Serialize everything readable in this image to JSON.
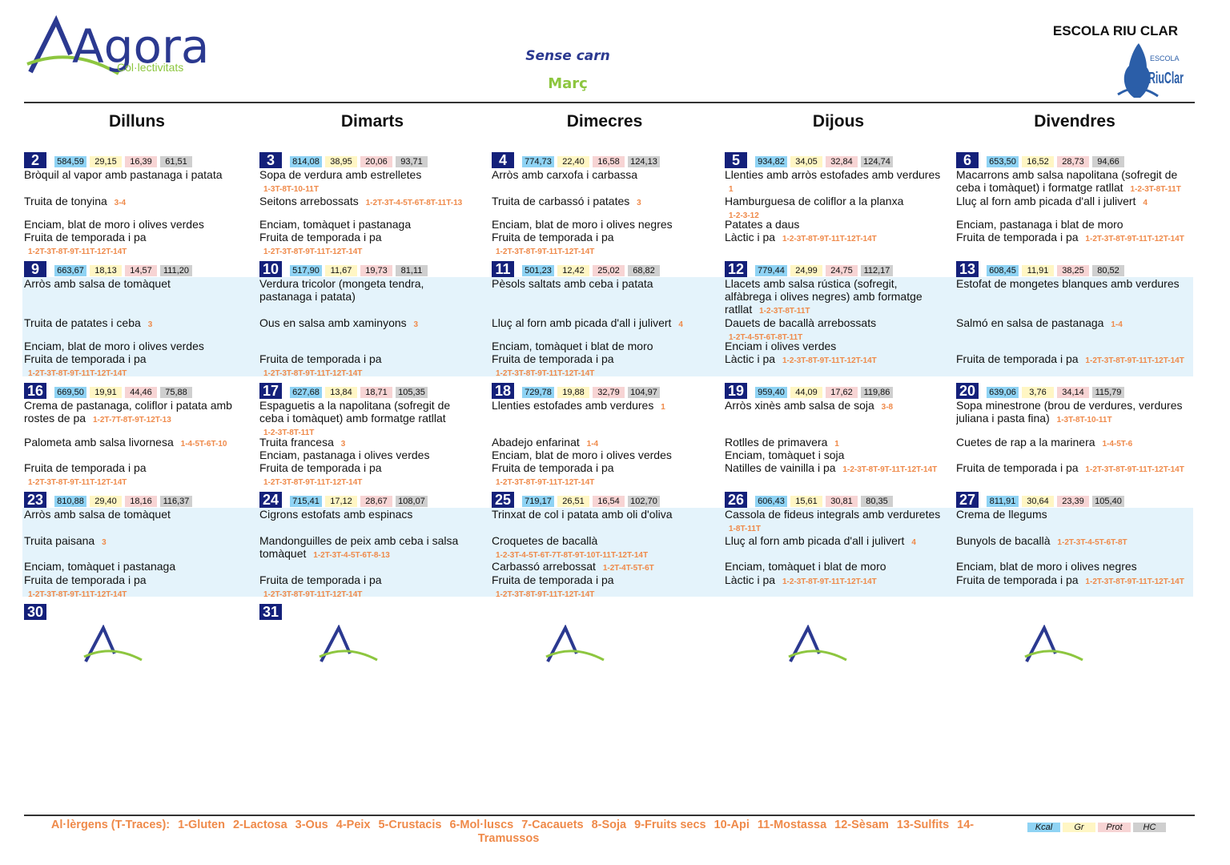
{
  "header": {
    "brand": "Agora",
    "brand_sub": "Col·lectivitats",
    "menu_type": "Sense carn",
    "month": "Març",
    "school": "ESCOLA RIU CLAR",
    "school_logo_top": "ESCOLA",
    "school_logo_name": "RiuClar"
  },
  "weekdays": [
    "Dilluns",
    "Dimarts",
    "Dimecres",
    "Dijous",
    "Divendres"
  ],
  "weeks": [
    [
      {
        "day": "2",
        "nutrition": [
          "584,59",
          "29,15",
          "16,39",
          "61,51"
        ],
        "first": {
          "text": "Bròquil al vapor amb pastanaga i patata"
        },
        "second": {
          "text": "Truita de tonyina",
          "allergens": "3-4"
        },
        "side": {
          "text": "Enciam, blat de moro i olives verdes"
        },
        "dessert": {
          "text": "Fruita de temporada i pa",
          "allergens": "1-2T-3T-8T-9T-11T-12T-14T"
        }
      },
      {
        "day": "3",
        "nutrition": [
          "814,08",
          "38,95",
          "20,06",
          "93,71"
        ],
        "first": {
          "text": "Sopa de verdura amb estrelletes",
          "allergens": "1-3T-8T-10-11T"
        },
        "second": {
          "text": "Seitons arrebossats",
          "allergens": "1-2T-3T-4-5T-6T-8T-11T-13"
        },
        "side": {
          "text": "Enciam, tomàquet i pastanaga"
        },
        "dessert": {
          "text": "Fruita de temporada i pa",
          "allergens": "1-2T-3T-8T-9T-11T-12T-14T"
        }
      },
      {
        "day": "4",
        "nutrition": [
          "774,73",
          "22,40",
          "16,58",
          "124,13"
        ],
        "first": {
          "text": "Arròs amb carxofa i carbassa"
        },
        "second": {
          "text": "Truita de carbassó i patates",
          "allergens": "3"
        },
        "side": {
          "text": "Enciam, blat de moro i olives negres"
        },
        "dessert": {
          "text": "Fruita de temporada i pa",
          "allergens": "1-2T-3T-8T-9T-11T-12T-14T"
        }
      },
      {
        "day": "5",
        "nutrition": [
          "934,82",
          "34,05",
          "32,84",
          "124,74"
        ],
        "first": {
          "text": "Llenties amb arròs estofades amb verdures",
          "allergens": "1"
        },
        "second": {
          "text": "Hamburguesa de coliflor a la planxa",
          "allergens": "1-2-3-12"
        },
        "side": {
          "text": "Patates a daus"
        },
        "dessert": {
          "text": "Làctic i pa",
          "allergens": "1-2-3T-8T-9T-11T-12T-14T"
        }
      },
      {
        "day": "6",
        "nutrition": [
          "653,50",
          "16,52",
          "28,73",
          "94,66"
        ],
        "first": {
          "text": "Macarrons amb salsa napolitana (sofregit de ceba i tomàquet) i formatge ratllat",
          "allergens": "1-2-3T-8T-11T"
        },
        "second": {
          "text": "Lluç al forn amb picada d'all i julivert",
          "allergens": "4"
        },
        "side": {
          "text": "Enciam, pastanaga i blat de moro"
        },
        "dessert": {
          "text": "Fruita de temporada i pa",
          "allergens": "1-2T-3T-8T-9T-11T-12T-14T"
        }
      }
    ],
    [
      {
        "day": "9",
        "nutrition": [
          "663,67",
          "18,13",
          "14,57",
          "111,20"
        ],
        "first": {
          "text": "Arròs amb salsa de tomàquet"
        },
        "second": {
          "text": "Truita de patates i ceba",
          "allergens": "3"
        },
        "side": {
          "text": "Enciam, blat de moro i olives verdes"
        },
        "dessert": {
          "text": "Fruita de temporada i pa",
          "allergens": "1-2T-3T-8T-9T-11T-12T-14T"
        }
      },
      {
        "day": "10",
        "nutrition": [
          "517,90",
          "11,67",
          "19,73",
          "81,11"
        ],
        "first": {
          "text": "Verdura tricolor (mongeta tendra, pastanaga i patata)"
        },
        "second": {
          "text": "Ous en salsa amb xaminyons",
          "allergens": "3"
        },
        "dessert": {
          "text": "Fruita de temporada i pa",
          "allergens": "1-2T-3T-8T-9T-11T-12T-14T"
        }
      },
      {
        "day": "11",
        "nutrition": [
          "501,23",
          "12,42",
          "25,02",
          "68,82"
        ],
        "first": {
          "text": "Pèsols saltats amb ceba i patata"
        },
        "second": {
          "text": "Lluç al forn amb picada d'all i julivert",
          "allergens": "4"
        },
        "side": {
          "text": "Enciam, tomàquet i blat de moro"
        },
        "dessert": {
          "text": "Fruita de temporada i pa",
          "allergens": "1-2T-3T-8T-9T-11T-12T-14T"
        }
      },
      {
        "day": "12",
        "nutrition": [
          "779,44",
          "24,99",
          "24,75",
          "112,17"
        ],
        "first": {
          "text": "Llacets amb salsa rústica (sofregit, alfàbrega i olives negres) amb formatge ratllat",
          "allergens": "1-2-3T-8T-11T"
        },
        "second": {
          "text": "Dauets de bacallà arrebossats",
          "allergens": "1-2T-4-5T-6T-8T-11T"
        },
        "side": {
          "text": "Enciam i olives verdes"
        },
        "dessert": {
          "text": "Làctic i pa",
          "allergens": "1-2-3T-8T-9T-11T-12T-14T"
        }
      },
      {
        "day": "13",
        "nutrition": [
          "608,45",
          "11,91",
          "38,25",
          "80,52"
        ],
        "first": {
          "text": "Estofat de mongetes blanques amb verdures"
        },
        "second": {
          "text": "Salmó en salsa de pastanaga",
          "allergens": "1-4"
        },
        "dessert": {
          "text": "Fruita de temporada i pa",
          "allergens": "1-2T-3T-8T-9T-11T-12T-14T"
        }
      }
    ],
    [
      {
        "day": "16",
        "nutrition": [
          "669,50",
          "19,91",
          "44,46",
          "75,88"
        ],
        "first": {
          "text": "Crema de pastanaga, coliflor i patata amb rostes de pa",
          "allergens": "1-2T-7T-8T-9T-12T-13"
        },
        "second": {
          "text": "Palometa amb salsa livornesa",
          "allergens": "1-4-5T-6T-10"
        },
        "dessert": {
          "text": "Fruita de temporada i pa",
          "allergens": "1-2T-3T-8T-9T-11T-12T-14T"
        }
      },
      {
        "day": "17",
        "nutrition": [
          "627,68",
          "13,84",
          "18,71",
          "105,35"
        ],
        "first": {
          "text": "Espaguetis a la napolitana (sofregit de ceba i tomàquet) amb formatge ratllat",
          "allergens": "1-2-3T-8T-11T"
        },
        "second": {
          "text": "Truita francesa",
          "allergens": "3"
        },
        "side": {
          "text": "Enciam, pastanaga i olives verdes"
        },
        "dessert": {
          "text": "Fruita de temporada i pa",
          "allergens": "1-2T-3T-8T-9T-11T-12T-14T"
        }
      },
      {
        "day": "18",
        "nutrition": [
          "729,78",
          "19,88",
          "32,79",
          "104,97"
        ],
        "first": {
          "text": "Llenties estofades amb verdures",
          "allergens": "1"
        },
        "second": {
          "text": "Abadejo enfarinat",
          "allergens": "1-4"
        },
        "side": {
          "text": "Enciam, blat de moro i olives verdes"
        },
        "dessert": {
          "text": "Fruita de temporada i pa",
          "allergens": "1-2T-3T-8T-9T-11T-12T-14T"
        }
      },
      {
        "day": "19",
        "nutrition": [
          "959,40",
          "44,09",
          "17,62",
          "119,86"
        ],
        "first": {
          "text": "Arròs xinès amb salsa de soja",
          "allergens": "3-8"
        },
        "second": {
          "text": "Rotlles de primavera",
          "allergens": "1"
        },
        "side": {
          "text": "Enciam, tomàquet i soja"
        },
        "dessert": {
          "text": "Natilles de vainilla i pa",
          "allergens": "1-2-3T-8T-9T-11T-12T-14T"
        }
      },
      {
        "day": "20",
        "nutrition": [
          "639,06",
          "3,76",
          "34,14",
          "115,79"
        ],
        "first": {
          "text": "Sopa minestrone (brou de verdures, verdures juliana i pasta fina)",
          "allergens": "1-3T-8T-10-11T"
        },
        "second": {
          "text": "Cuetes de rap a la marinera",
          "allergens": "1-4-5T-6"
        },
        "dessert": {
          "text": "Fruita de temporada i pa",
          "allergens": "1-2T-3T-8T-9T-11T-12T-14T"
        }
      }
    ],
    [
      {
        "day": "23",
        "nutrition": [
          "810,88",
          "29,40",
          "18,16",
          "116,37"
        ],
        "first": {
          "text": "Arròs amb salsa de tomàquet"
        },
        "second": {
          "text": "Truita paisana",
          "allergens": "3"
        },
        "side": {
          "text": "Enciam, tomàquet i pastanaga"
        },
        "dessert": {
          "text": "Fruita de temporada i pa",
          "allergens": "1-2T-3T-8T-9T-11T-12T-14T"
        }
      },
      {
        "day": "24",
        "nutrition": [
          "715,41",
          "17,12",
          "28,67",
          "108,07"
        ],
        "first": {
          "text": "Cigrons estofats amb espinacs"
        },
        "second": {
          "text": "Mandonguilles de peix amb ceba i salsa tomàquet",
          "allergens": "1-2T-3T-4-5T-6T-8-13"
        },
        "dessert": {
          "text": "Fruita de temporada i pa",
          "allergens": "1-2T-3T-8T-9T-11T-12T-14T"
        }
      },
      {
        "day": "25",
        "nutrition": [
          "719,17",
          "26,51",
          "16,54",
          "102,70"
        ],
        "first": {
          "text": "Trinxat de col i patata amb oli d'oliva"
        },
        "second": {
          "text": "Croquetes de bacallà",
          "allergens": "1-2-3T-4-5T-6T-7T-8T-9T-10T-11T-12T-14T"
        },
        "side": {
          "text": "Carbassó arrebossat",
          "allergens": "1-2T-4T-5T-6T"
        },
        "dessert": {
          "text": "Fruita de temporada i pa",
          "allergens": "1-2T-3T-8T-9T-11T-12T-14T"
        }
      },
      {
        "day": "26",
        "nutrition": [
          "606,43",
          "15,61",
          "30,81",
          "80,35"
        ],
        "first": {
          "text": "Cassola de fideus integrals amb verduretes",
          "allergens": "1-8T-11T"
        },
        "second": {
          "text": "Lluç al forn amb picada d'all i julivert",
          "allergens": "4"
        },
        "side": {
          "text": "Enciam, tomàquet i blat de moro"
        },
        "dessert": {
          "text": "Làctic i pa",
          "allergens": "1-2-3T-8T-9T-11T-12T-14T"
        }
      },
      {
        "day": "27",
        "nutrition": [
          "811,91",
          "30,64",
          "23,39",
          "105,40"
        ],
        "first": {
          "text": "Crema de llegums"
        },
        "second": {
          "text": "Bunyols de bacallà",
          "allergens": "1-2T-3T-4-5T-6T-8T"
        },
        "side": {
          "text": "Enciam, blat de moro i olives negres"
        },
        "dessert": {
          "text": "Fruita de temporada i pa",
          "allergens": "1-2T-3T-8T-9T-11T-12T-14T"
        }
      }
    ],
    [
      {
        "day": "30"
      },
      {
        "day": "31"
      }
    ]
  ],
  "footer": {
    "allergens_title": "Al·lèrgens (T-Traces):",
    "allergens": [
      "1-Gluten",
      "2-Lactosa",
      "3-Ous",
      "4-Peix",
      "5-Crustacis",
      "6-Mol·luscs",
      "7-Cacauets",
      "8-Soja",
      "9-Fruits secs",
      "10-Api",
      "11-Mostassa",
      "12-Sèsam",
      "13-Sulfits",
      "14-Tramussos"
    ],
    "legend": [
      "Kcal",
      "Gr",
      "Prot",
      "HC"
    ]
  }
}
